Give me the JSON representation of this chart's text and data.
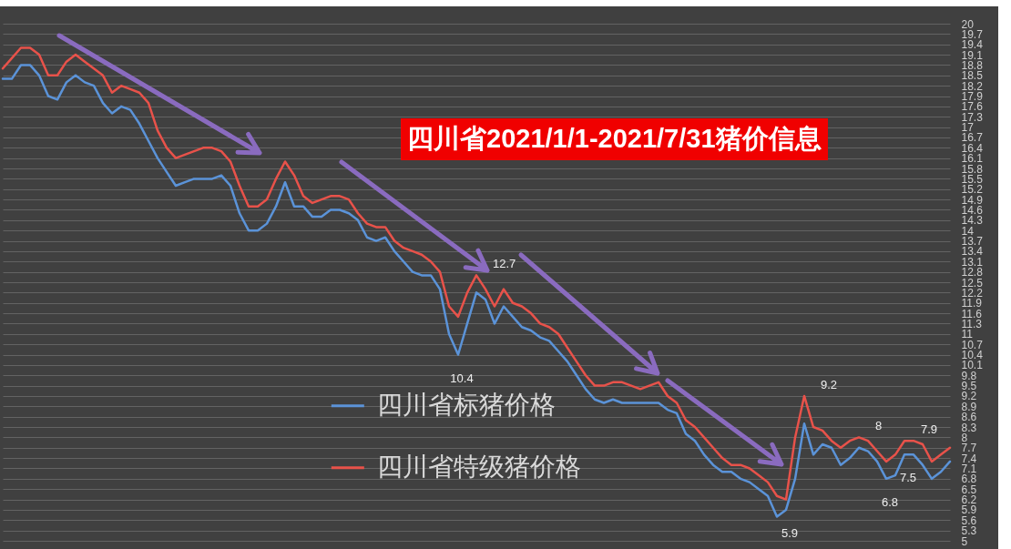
{
  "chart_data": {
    "type": "line",
    "title": "四川省2021/1/1-2021/7/31猪价信息",
    "categories": [
      null,
      null,
      null,
      null,
      null,
      null,
      null,
      null,
      null,
      null,
      null,
      null,
      null,
      null,
      null,
      null,
      null,
      null,
      null,
      null,
      null,
      null,
      null,
      null,
      null,
      null,
      null,
      null,
      null,
      null,
      null,
      null,
      null,
      null,
      null,
      null,
      null,
      null,
      null,
      null,
      null,
      null,
      null,
      null,
      null,
      null,
      null,
      null,
      null,
      null,
      null,
      null,
      null,
      null,
      null,
      null,
      null,
      null,
      null,
      null,
      null,
      null,
      null,
      null,
      null,
      null,
      null,
      null,
      null,
      null,
      null,
      null,
      null,
      null,
      null,
      null,
      null,
      null,
      null,
      null,
      null,
      null,
      null,
      null,
      null,
      null,
      null,
      null,
      null,
      null,
      null,
      null,
      null,
      null,
      null,
      null,
      null,
      null,
      null,
      null,
      null,
      null,
      null,
      null,
      null
    ],
    "series": [
      {
        "name": "四川省标猪价格",
        "color": "#5b93d8",
        "values": [
          18.4,
          18.4,
          18.8,
          18.8,
          18.5,
          17.9,
          17.8,
          18.3,
          18.5,
          18.3,
          18.2,
          17.7,
          17.4,
          17.6,
          17.5,
          17.1,
          16.6,
          16.1,
          15.7,
          15.3,
          15.4,
          15.5,
          15.5,
          15.5,
          15.6,
          15.3,
          14.5,
          14.0,
          14.0,
          14.2,
          14.7,
          15.4,
          14.7,
          14.7,
          14.4,
          14.4,
          14.6,
          14.6,
          14.5,
          14.3,
          13.8,
          13.7,
          13.8,
          13.4,
          13.1,
          12.8,
          12.7,
          12.7,
          12.3,
          11.0,
          10.4,
          11.3,
          12.2,
          12.0,
          11.3,
          11.8,
          11.5,
          11.2,
          11.1,
          10.9,
          10.8,
          10.5,
          10.2,
          9.8,
          9.4,
          9.1,
          9.0,
          9.1,
          9.0,
          9.0,
          9.0,
          9.0,
          9.0,
          8.8,
          8.7,
          8.1,
          7.9,
          7.5,
          7.2,
          7.0,
          7.0,
          6.8,
          6.7,
          6.5,
          6.3,
          5.7,
          5.9,
          6.8,
          8.4,
          7.5,
          7.8,
          7.7,
          7.2,
          7.4,
          7.7,
          7.6,
          7.3,
          6.8,
          6.9,
          7.5,
          7.5,
          7.2,
          6.8,
          7.0,
          7.3
        ],
        "value_labels": [
          null,
          null,
          null,
          null,
          null,
          null,
          null,
          null,
          null,
          null,
          null,
          null,
          null,
          null,
          null,
          null,
          null,
          null,
          null,
          null,
          null,
          null,
          null,
          null,
          null,
          null,
          null,
          null,
          null,
          null,
          null,
          null,
          null,
          null,
          null,
          null,
          null,
          null,
          null,
          null,
          null,
          null,
          null,
          null,
          null,
          null,
          null,
          null,
          null,
          null,
          "10.4",
          null,
          null,
          null,
          null,
          null,
          null,
          null,
          null,
          null,
          null,
          null,
          null,
          null,
          null,
          null,
          null,
          null,
          null,
          null,
          null,
          null,
          null,
          null,
          null,
          null,
          null,
          null,
          null,
          null,
          null,
          null,
          null,
          null,
          null,
          null,
          "5.9",
          null,
          null,
          null,
          null,
          null,
          null,
          null,
          null,
          null,
          null,
          "6.8",
          null,
          "7.5",
          null,
          null,
          null,
          null,
          null
        ]
      },
      {
        "name": "四川省特级猪价格",
        "color": "#e8524a",
        "values": [
          18.7,
          19.0,
          19.3,
          19.3,
          19.1,
          18.5,
          18.5,
          18.9,
          19.1,
          18.9,
          18.7,
          18.5,
          18.0,
          18.2,
          18.1,
          18.0,
          17.7,
          16.9,
          16.4,
          16.1,
          16.2,
          16.3,
          16.4,
          16.4,
          16.3,
          16.0,
          15.3,
          14.7,
          14.7,
          14.9,
          15.5,
          16.0,
          15.6,
          15.0,
          14.8,
          14.9,
          15.0,
          15.0,
          14.9,
          14.5,
          14.2,
          14.1,
          14.1,
          13.7,
          13.5,
          13.4,
          13.3,
          13.1,
          12.8,
          11.8,
          11.5,
          12.2,
          12.7,
          12.3,
          11.8,
          12.3,
          11.9,
          11.8,
          11.6,
          11.3,
          11.2,
          11.0,
          10.6,
          10.2,
          9.8,
          9.5,
          9.5,
          9.6,
          9.6,
          9.5,
          9.4,
          9.5,
          9.6,
          9.2,
          9.0,
          8.5,
          8.3,
          8.0,
          7.7,
          7.4,
          7.2,
          7.2,
          7.1,
          6.9,
          6.7,
          6.3,
          6.2,
          8.0,
          9.2,
          8.3,
          8.2,
          7.9,
          7.7,
          7.9,
          8.0,
          7.9,
          7.6,
          7.3,
          7.5,
          7.9,
          7.9,
          7.8,
          7.3,
          7.5,
          7.7
        ],
        "value_labels": [
          null,
          null,
          null,
          null,
          null,
          null,
          null,
          null,
          null,
          null,
          null,
          null,
          null,
          null,
          null,
          null,
          null,
          null,
          null,
          null,
          null,
          null,
          null,
          null,
          null,
          null,
          null,
          null,
          null,
          null,
          null,
          null,
          null,
          null,
          null,
          null,
          null,
          null,
          null,
          null,
          null,
          null,
          null,
          null,
          null,
          null,
          null,
          null,
          null,
          null,
          null,
          null,
          "12.7",
          null,
          null,
          null,
          null,
          null,
          null,
          null,
          null,
          null,
          null,
          null,
          null,
          null,
          null,
          null,
          null,
          null,
          null,
          null,
          null,
          null,
          null,
          null,
          null,
          null,
          null,
          null,
          null,
          null,
          null,
          null,
          null,
          null,
          null,
          null,
          "9.2",
          null,
          null,
          null,
          null,
          null,
          "8",
          null,
          null,
          null,
          null,
          "7.9",
          null,
          null,
          null,
          null,
          null
        ]
      }
    ],
    "ylim": [
      5,
      20
    ],
    "yticks": [
      5,
      5.3,
      5.6,
      5.9,
      6.2,
      6.5,
      6.8,
      7.1,
      7.4,
      7.7,
      8,
      8.3,
      8.6,
      8.9,
      9.2,
      9.5,
      9.8,
      10.1,
      10.4,
      10.7,
      11,
      11.3,
      11.6,
      11.9,
      12.2,
      12.5,
      12.8,
      13.1,
      13.4,
      13.7,
      14,
      14.3,
      14.6,
      14.9,
      15.2,
      15.5,
      15.8,
      16.1,
      16.4,
      16.7,
      17,
      17.3,
      17.6,
      17.9,
      18.2,
      18.5,
      18.8,
      19.1,
      19.4,
      19.7,
      20
    ],
    "grid": "y",
    "legend": "bottom"
  }
}
